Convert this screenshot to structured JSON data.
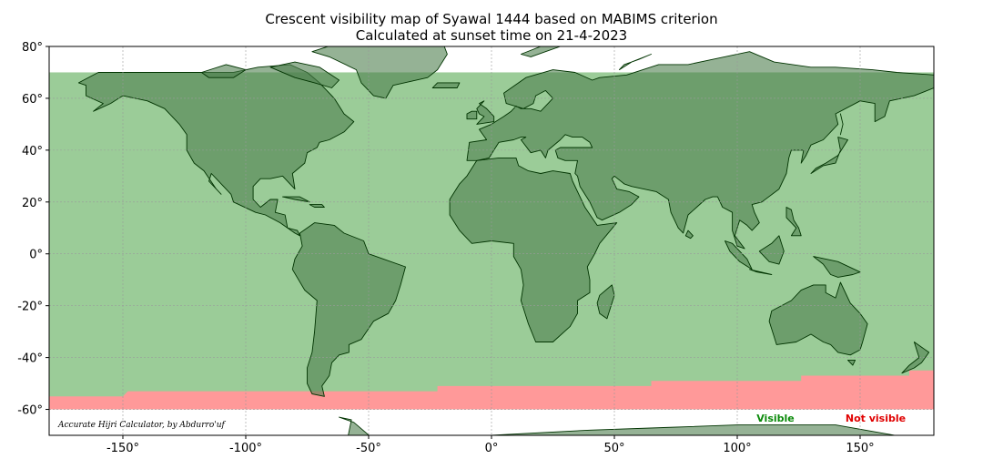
{
  "figure": {
    "title_line1": "Crescent visibility map of Syawal 1444 based on MABIMS criterion",
    "title_line2": "Calculated at sunset time on 21-4-2023",
    "credit": "Accurate Hijri Calculator, by Abdurro'uf"
  },
  "legend": {
    "visible_label": "Visible",
    "not_visible_label": "Not visible",
    "visible_color": "#0a8a0a",
    "not_visible_color": "#e00000"
  },
  "colors": {
    "visible_fill": "#9bcc98",
    "not_visible_fill": "#ff9999",
    "land_overlay": "#4f7f4f",
    "outside_land": "#d3d3d3",
    "border": "#003300",
    "grid": "#9a9a9a"
  },
  "axes": {
    "xlim": [
      -180,
      180
    ],
    "ylim": [
      -70,
      80
    ],
    "xticks": [
      -150,
      -100,
      -50,
      0,
      50,
      100,
      150
    ],
    "xtick_labels": [
      "-150°",
      "-100°",
      "-50°",
      "0°",
      "50°",
      "100°",
      "150°"
    ],
    "yticks": [
      -60,
      -40,
      -20,
      0,
      20,
      40,
      60,
      80
    ],
    "ytick_labels": [
      "-60°",
      "-40°",
      "-20°",
      "0°",
      "20°",
      "40°",
      "60°",
      "80°"
    ]
  },
  "chart_data": {
    "type": "map",
    "projection": "PlateCarree",
    "title": "Crescent visibility map of Syawal 1444 based on MABIMS criterion",
    "subtitle": "Calculated at sunset time on 21-4-2023",
    "xlim": [
      -180,
      180
    ],
    "ylim": [
      -70,
      80
    ],
    "grid": true,
    "legend": [
      "Visible",
      "Not visible"
    ],
    "computed_lat_range": [
      -60,
      70
    ],
    "not_visible_boundary": [
      [
        -180,
        -55
      ],
      [
        -150,
        -55
      ],
      [
        -148,
        -53
      ],
      [
        -22,
        -53
      ],
      [
        -22,
        -51
      ],
      [
        65,
        -51
      ],
      [
        65,
        -49
      ],
      [
        126,
        -49
      ],
      [
        126,
        -47
      ],
      [
        170,
        -47
      ],
      [
        170,
        -45
      ],
      [
        180,
        -45
      ]
    ]
  }
}
